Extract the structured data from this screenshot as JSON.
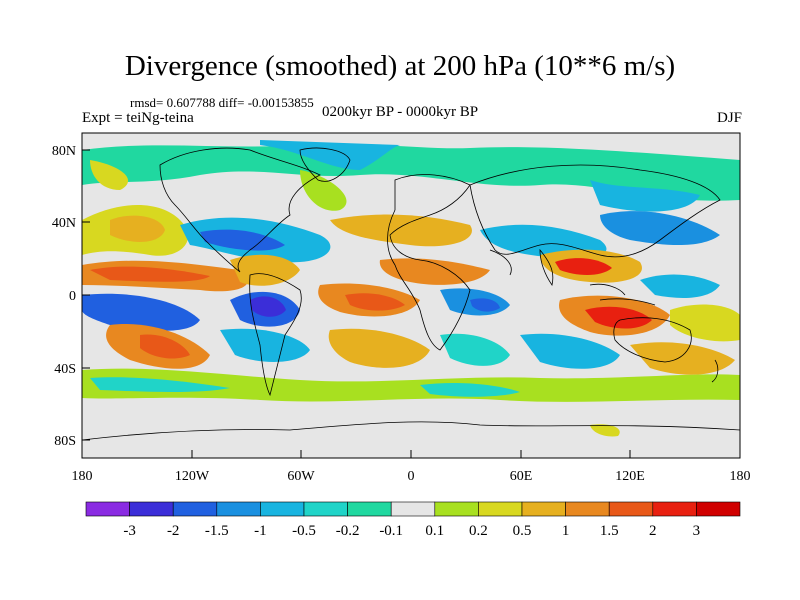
{
  "title": "Divergence (smoothed) at 200 hPa (10**6 m/s)",
  "stats_line": "rmsd= 0.607788 diff= -0.00153855",
  "experiment": "Expt = teiNg-teina",
  "period": "0200kyr BP - 0000kyr BP",
  "season": "DJF",
  "lat_ticks": [
    "80N",
    "40N",
    "0",
    "40S",
    "80S"
  ],
  "lon_ticks": [
    "180",
    "120W",
    "60W",
    "0",
    "60E",
    "120E",
    "180"
  ],
  "colorbar": {
    "labels": [
      "-3",
      "-2",
      "-1.5",
      "-1",
      "-0.5",
      "-0.2",
      "-0.1",
      "0.1",
      "0.2",
      "0.5",
      "1",
      "1.5",
      "2",
      "3"
    ],
    "colors": [
      "#8a2be2",
      "#3b2ed8",
      "#2060e0",
      "#1a90e0",
      "#18b4e0",
      "#20d4c8",
      "#20d8a0",
      "#e6e6e6",
      "#a8e020",
      "#d8d820",
      "#e6b020",
      "#e88820",
      "#e85818",
      "#e82010",
      "#d00000"
    ]
  }
}
